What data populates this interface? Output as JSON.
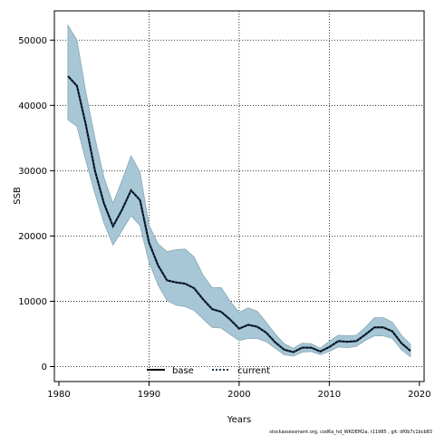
{
  "chart_data": {
    "type": "line",
    "xlabel": "Years",
    "ylabel": "SSB",
    "xlim": [
      1980,
      2020
    ],
    "ylim": [
      0,
      52000
    ],
    "x_ticks": [
      1980,
      1990,
      2000,
      2010,
      2020
    ],
    "y_ticks": [
      0,
      10000,
      20000,
      30000,
      40000,
      50000
    ],
    "grid": true,
    "legend_position": "bottom-center",
    "colors": {
      "band_fill": "#a7c6d6",
      "band_edge": "#8aa9b6",
      "base": "#000000",
      "current": "#1a3a5c"
    },
    "x": [
      1981,
      1982,
      1983,
      1984,
      1985,
      1986,
      1987,
      1988,
      1989,
      1990,
      1991,
      1992,
      1993,
      1994,
      1995,
      1996,
      1997,
      1998,
      1999,
      2000,
      2001,
      2002,
      2003,
      2004,
      2005,
      2006,
      2007,
      2008,
      2009,
      2010,
      2011,
      2012,
      2013,
      2014,
      2015,
      2016,
      2017,
      2018,
      2019
    ],
    "series": [
      {
        "name": "base",
        "style": "solid",
        "values": [
          44500,
          43000,
          37000,
          30000,
          25000,
          21500,
          24000,
          27000,
          25500,
          19000,
          15500,
          13200,
          12900,
          12700,
          12000,
          10300,
          8800,
          8400,
          7200,
          5800,
          6400,
          6100,
          5200,
          3700,
          2600,
          2200,
          2900,
          2900,
          2300,
          3000,
          3900,
          3800,
          3900,
          4900,
          6000,
          6000,
          5400,
          3600,
          2400
        ]
      },
      {
        "name": "current",
        "style": "dotted",
        "values": [
          44500,
          43000,
          37000,
          30000,
          25000,
          21500,
          24000,
          27000,
          25500,
          19000,
          15500,
          13200,
          12900,
          12700,
          12000,
          10300,
          8800,
          8400,
          7200,
          5800,
          6400,
          6100,
          5200,
          3700,
          2600,
          2200,
          2900,
          2900,
          2300,
          3000,
          3900,
          3800,
          3900,
          4900,
          6000,
          6000,
          5400,
          3600,
          2400
        ]
      }
    ],
    "band_upper": [
      52300,
      50000,
      42000,
      35000,
      29000,
      25000,
      28500,
      32300,
      29800,
      21700,
      18800,
      17600,
      17900,
      18000,
      16800,
      14000,
      12100,
      12100,
      10000,
      8300,
      9000,
      8500,
      6800,
      5000,
      3500,
      2800,
      3600,
      3500,
      2800,
      3900,
      4800,
      4700,
      4800,
      6000,
      7500,
      7500,
      6800,
      4800,
      3400
    ],
    "band_lower": [
      37800,
      36800,
      31500,
      26500,
      22000,
      18600,
      20800,
      23100,
      21600,
      16000,
      12500,
      10100,
      9400,
      9200,
      8600,
      7300,
      6000,
      5900,
      4900,
      4000,
      4300,
      4300,
      3800,
      2800,
      1800,
      1600,
      2200,
      2300,
      1800,
      2300,
      3000,
      2900,
      3100,
      4000,
      4700,
      4700,
      4300,
      2600,
      1500
    ]
  },
  "legend": {
    "base_label": "base",
    "current_label": "current"
  },
  "footer": {
    "text": "stockassessment.org, cod6a_hd_WKDEM2a, r11985 , git: df0b7c1bcb83"
  }
}
